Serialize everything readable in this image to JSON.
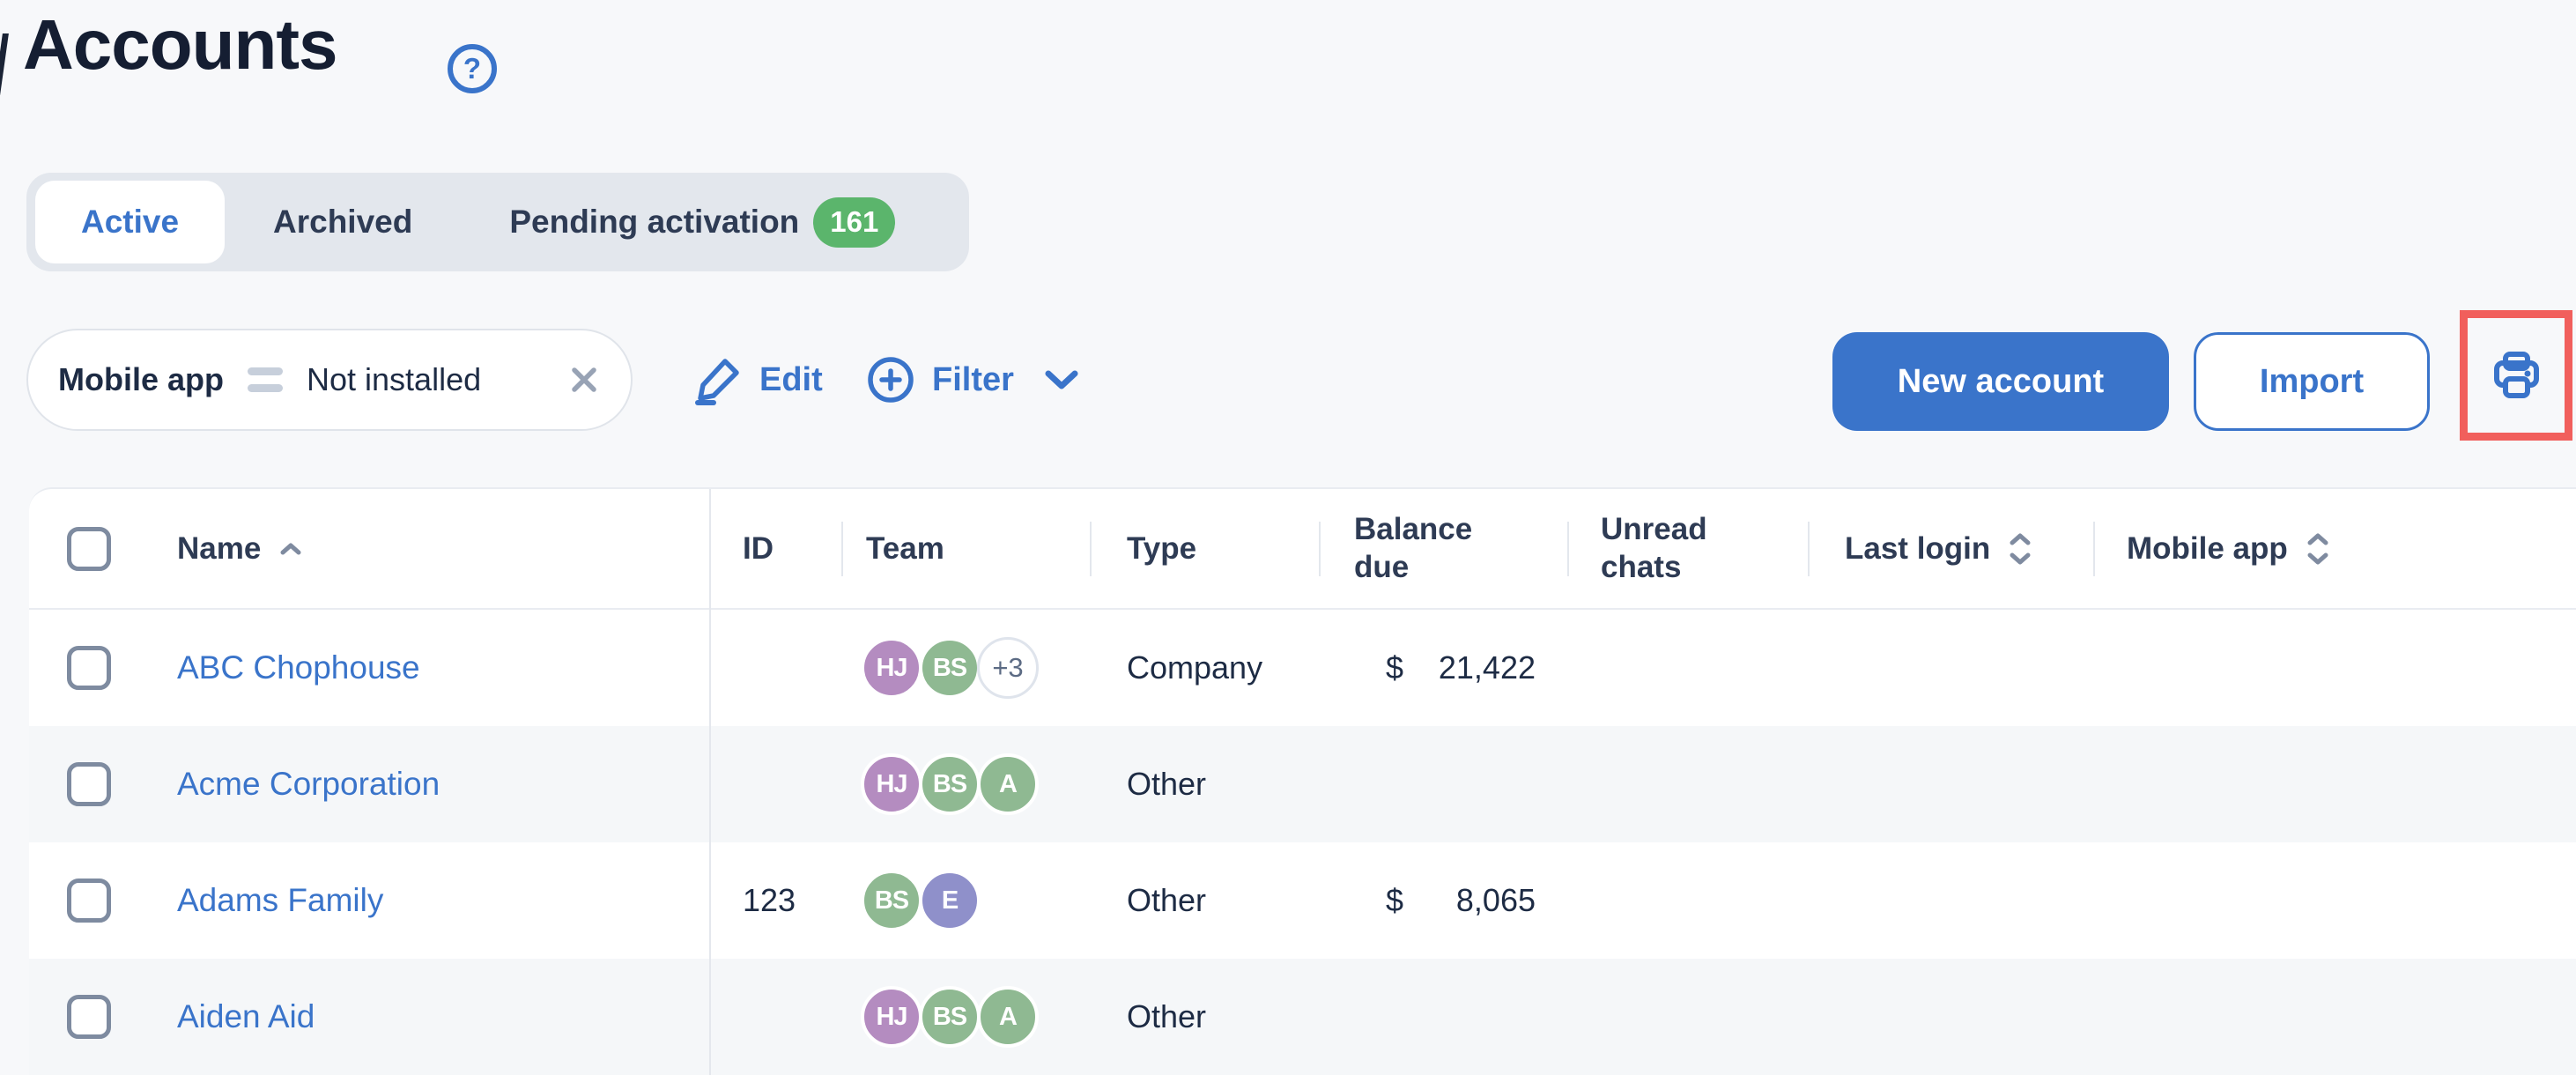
{
  "colors": {
    "accent_blue": "#3a74ca",
    "page_background": "#f7f8fa",
    "dark_text": "#1d2b44",
    "header_text": "#2e3b54",
    "badge_green": "#5bb56c",
    "annotation_red": "#f15f5c",
    "alt_row": "#f5f7f9",
    "avatar_purple": "#b48cc0",
    "avatar_green": "#8fb992",
    "avatar_periwinkle": "#8f90ca"
  },
  "header": {
    "title": "Accounts",
    "help_glyph": "?"
  },
  "tabs": [
    {
      "label": "Active",
      "selected": true
    },
    {
      "label": "Archived",
      "selected": false
    },
    {
      "label": "Pending activation",
      "selected": false,
      "badge": "161"
    }
  ],
  "filter_bar": {
    "chip": {
      "field": "Mobile app",
      "operator_icon": "equals-icon",
      "value": "Not installed"
    },
    "edit_label": "Edit",
    "filter_label": "Filter"
  },
  "actions": {
    "new_account": "New account",
    "import": "Import"
  },
  "table": {
    "currency": "$",
    "columns": [
      {
        "key": "select",
        "label": ""
      },
      {
        "key": "name",
        "label": "Name",
        "sort": "asc"
      },
      {
        "key": "id",
        "label": "ID"
      },
      {
        "key": "team",
        "label": "Team"
      },
      {
        "key": "type",
        "label": "Type"
      },
      {
        "key": "balance_due",
        "label": "Balance due"
      },
      {
        "key": "unread_chats",
        "label": "Unread chats"
      },
      {
        "key": "last_login",
        "label": "Last login",
        "sortable": true
      },
      {
        "key": "mobile_app",
        "label": "Mobile app",
        "sortable": true
      }
    ],
    "rows": [
      {
        "name": "ABC Chophouse",
        "id": "",
        "type": "Company",
        "balance_due": "21,422",
        "unread_chats": "",
        "last_login": "",
        "mobile_app": "",
        "team": [
          {
            "initials": "HJ",
            "color": "#b48cc0"
          },
          {
            "initials": "BS",
            "color": "#8fb992"
          },
          {
            "initials": "+3",
            "overflow": true
          }
        ]
      },
      {
        "name": "Acme Corporation",
        "id": "",
        "type": "Other",
        "balance_due": "",
        "unread_chats": "",
        "last_login": "",
        "mobile_app": "",
        "team": [
          {
            "initials": "HJ",
            "color": "#b48cc0"
          },
          {
            "initials": "BS",
            "color": "#8fb992"
          },
          {
            "initials": "A",
            "color": "#8fb992"
          }
        ]
      },
      {
        "name": "Adams Family",
        "id": "123",
        "type": "Other",
        "balance_due": "8,065",
        "unread_chats": "",
        "last_login": "",
        "mobile_app": "",
        "team": [
          {
            "initials": "BS",
            "color": "#8fb992"
          },
          {
            "initials": "E",
            "color": "#8f90ca"
          }
        ]
      },
      {
        "name": "Aiden Aid",
        "id": "",
        "type": "Other",
        "balance_due": "",
        "unread_chats": "",
        "last_login": "",
        "mobile_app": "",
        "team": [
          {
            "initials": "HJ",
            "color": "#b48cc0"
          },
          {
            "initials": "BS",
            "color": "#8fb992"
          },
          {
            "initials": "A",
            "color": "#8fb992"
          }
        ]
      }
    ]
  },
  "annotation": {
    "shape": "highlight-box",
    "color": "#f15f5c",
    "around": "print-button"
  }
}
